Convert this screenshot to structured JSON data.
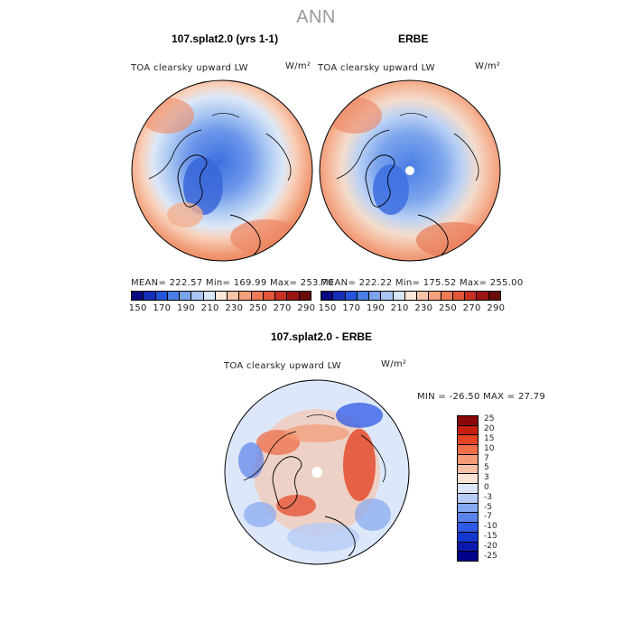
{
  "title": "ANN",
  "panels": [
    {
      "title": "107.splat2.0 (yrs 1-1)",
      "variable": "TOA clearsky upward LW",
      "units": "W/m²",
      "stats": {
        "mean": "222.57",
        "min": "169.99",
        "max": "253.70"
      },
      "stats_text": "MEAN= 222.57   Min= 169.99   Max= 253.70"
    },
    {
      "title": "ERBE",
      "variable": "TOA clearsky upward LW",
      "units": "W/m²",
      "stats": {
        "mean": "222.22",
        "min": "175.52",
        "max": "255.00"
      },
      "stats_text": "MEAN= 222.22   Min= 175.52   Max= 255.00"
    }
  ],
  "colorbar_top": {
    "ticks": [
      "150",
      "170",
      "190",
      "210",
      "230",
      "250",
      "270",
      "290"
    ],
    "colors": [
      "#0a0a80",
      "#1430b8",
      "#2456dc",
      "#4a7ee6",
      "#7aa4ec",
      "#a8c6f2",
      "#d6e6f8",
      "#fbe6d8",
      "#f8c4a8",
      "#f4a07c",
      "#ee7a56",
      "#e2553a",
      "#c83024",
      "#9a1410",
      "#6a0a08"
    ]
  },
  "diff_panel": {
    "title": "107.splat2.0 - ERBE",
    "variable": "TOA clearsky upward LW",
    "units": "W/m²",
    "minmax_text": "MIN = -26.50 MAX =  27.79",
    "stats": {
      "min": "-26.50",
      "max": "27.79"
    }
  },
  "colorbar_diff": {
    "ticks": [
      "-25",
      "-20",
      "-15",
      "-10",
      "-7",
      "-5",
      "-3",
      "0",
      "3",
      "5",
      "7",
      "10",
      "15",
      "20",
      "25"
    ],
    "colors": [
      "#00008a",
      "#0a1ab0",
      "#1438d0",
      "#2e5ae4",
      "#5a82ea",
      "#86a8f0",
      "#b6ccf6",
      "#dce8fa",
      "#fbe4d6",
      "#f8c0a4",
      "#f49a74",
      "#ee6e48",
      "#e44424",
      "#c82010",
      "#8a0808"
    ]
  },
  "icons": {
    "map_projection": "polar-stereographic-north"
  }
}
